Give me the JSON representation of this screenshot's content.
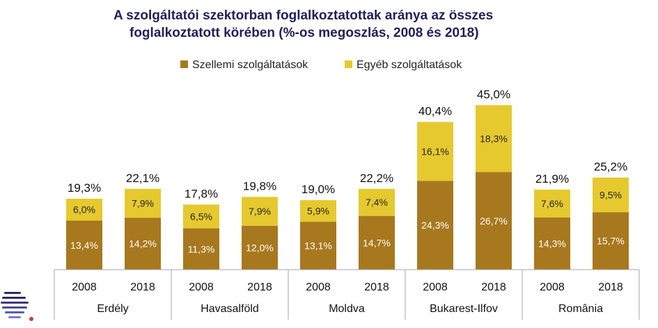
{
  "chart_data": {
    "type": "bar",
    "stacked": true,
    "title": "A  szolgáltatói szektorban foglalkoztatottak aránya az összes foglalkoztatott körében (%-os megoszlás, 2008 és 2018)",
    "title_lines": [
      "A  szolgáltatói szektorban foglalkoztatottak aránya az összes",
      "foglalkoztatott körében (%-os megoszlás, 2008 és 2018)"
    ],
    "legend_position": "top-center",
    "grid": false,
    "ylim": [
      0,
      50
    ],
    "groups": [
      "Erdély",
      "Havasalföld",
      "Moldva",
      "Bukarest-Ilfov",
      "România"
    ],
    "years": [
      "2008",
      "2018"
    ],
    "categories": [
      "Erdély 2008",
      "Erdély 2018",
      "Havasalföld 2008",
      "Havasalföld 2018",
      "Moldva 2008",
      "Moldva 2018",
      "Bukarest-Ilfov 2008",
      "Bukarest-Ilfov 2018",
      "România 2008",
      "România 2018"
    ],
    "series": [
      {
        "name": "Szellemi szolgáltatások",
        "color": "#a8781e",
        "label_color": "#ffffff",
        "values": [
          13.4,
          14.2,
          11.3,
          12.0,
          13.1,
          14.7,
          24.3,
          26.7,
          14.3,
          15.7
        ],
        "labels": [
          "13,4%",
          "14,2%",
          "11,3%",
          "12,0%",
          "13,1%",
          "14,7%",
          "24,3%",
          "26,7%",
          "14,3%",
          "15,7%"
        ]
      },
      {
        "name": "Egyéb szolgáltatások",
        "color": "#e6c92e",
        "label_color": "#222222",
        "values": [
          6.0,
          7.9,
          6.5,
          7.9,
          5.9,
          7.4,
          16.1,
          18.3,
          7.6,
          9.5
        ],
        "labels": [
          "6,0%",
          "7,9%",
          "6,5%",
          "7,9%",
          "5,9%",
          "7,4%",
          "16,1%",
          "18,3%",
          "7,6%",
          "9,5%"
        ]
      }
    ],
    "totals": [
      19.3,
      22.1,
      17.8,
      19.8,
      19.0,
      22.2,
      40.4,
      45.0,
      21.9,
      25.2
    ],
    "total_labels": [
      "19,3%",
      "22,1%",
      "17,8%",
      "19,8%",
      "19,0%",
      "22,2%",
      "40,4%",
      "45,0%",
      "21,9%",
      "25,2%"
    ]
  },
  "logo_icon": "stacked-lines-logo-icon"
}
